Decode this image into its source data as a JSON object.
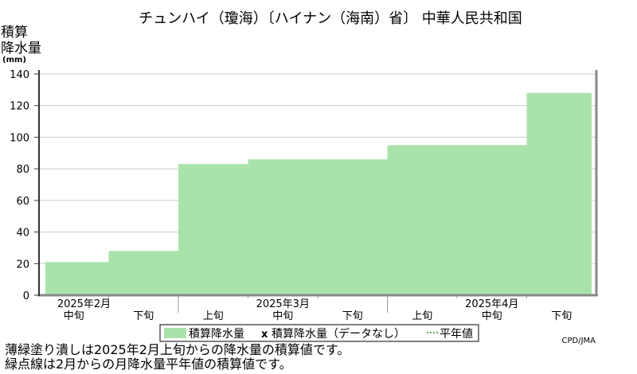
{
  "chart_data": {
    "type": "bar",
    "title": "チュンハイ（瓊海）〔ハイナン（海南）省〕 中華人民共和国",
    "ylabel": [
      "積算",
      "降水量",
      "(mm)"
    ],
    "ylim": [
      0,
      140
    ],
    "yticks": [
      0,
      20,
      40,
      60,
      80,
      100,
      120,
      140
    ],
    "grid": true,
    "categories": [
      "2025年2月 中旬",
      "2025年2月 下旬",
      "2025年3月 上旬",
      "2025年3月 中旬",
      "2025年3月 下旬",
      "2025年4月 上旬",
      "2025年4月 中旬",
      "2025年4月 下旬"
    ],
    "x_tick_labels": [
      "中旬",
      "下旬",
      "上旬",
      "中旬",
      "下旬",
      "上旬",
      "中旬",
      "下旬"
    ],
    "month_labels": [
      {
        "label": "2025年2月",
        "start": 0,
        "count": 2
      },
      {
        "label": "2025年3月",
        "start": 2,
        "count": 3
      },
      {
        "label": "2025年4月",
        "start": 5,
        "count": 3
      }
    ],
    "series": [
      {
        "name": "積算降水量",
        "values": [
          21,
          28,
          83,
          86,
          86,
          95,
          95,
          128
        ],
        "color": "#aae3aa"
      }
    ],
    "legend": {
      "placement": "bottom-center",
      "items": [
        "積算降水量",
        "積算降水量（データなし）",
        "平年値"
      ],
      "missing_marker": "x"
    },
    "credit": "CPD/JMA"
  },
  "notes": [
    "薄緑塗り潰しは2025年2月上旬からの降水量の積算値です。",
    "緑点線は2月からの月降水量平年値の積算値です。"
  ]
}
